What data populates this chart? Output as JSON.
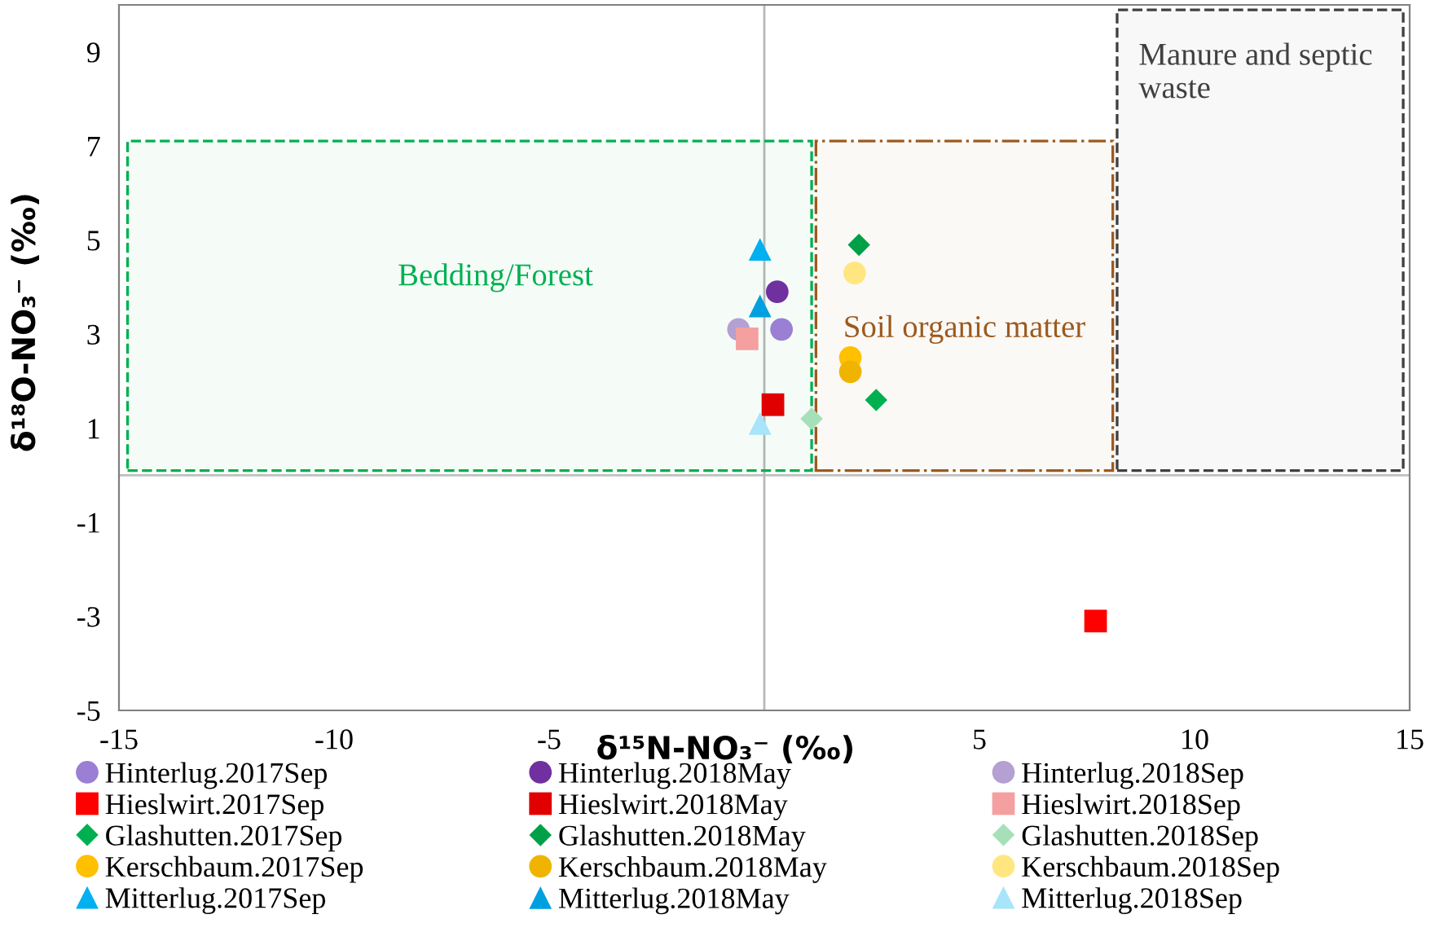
{
  "chart_data": {
    "type": "scatter",
    "xlabel": "δ¹⁵N-NO₃⁻ (‰)",
    "ylabel": "δ¹⁸O-NO₃⁻ (‰)",
    "xlim": [
      -15,
      15
    ],
    "xticks": [
      -15,
      -10,
      -5,
      5,
      10,
      15
    ],
    "ylim": [
      -5,
      10
    ],
    "yticks": [
      -5,
      -3,
      -1,
      1,
      3,
      5,
      7,
      9
    ],
    "grid": false,
    "legend": "bottom",
    "ref_lines": [
      {
        "axis": "y",
        "value": 0,
        "color": "#bfbfbf"
      },
      {
        "axis": "x",
        "value": 0,
        "color": "#b8b8b8"
      }
    ],
    "bands": [
      {
        "axis": "x",
        "from": -14.8,
        "to": 1.1,
        "label": "Bedding/Forest",
        "color": "#00b050"
      },
      {
        "axis": "x",
        "from": 1.2,
        "to": 8.1,
        "label": "Soil organic matter",
        "color": "#9c5a1e"
      },
      {
        "axis": "x",
        "from": 8.2,
        "to": 14.85,
        "label": "Manure and septic waste",
        "color": "#404040"
      }
    ],
    "series": [
      {
        "name": "Hinterlug.2017Sep",
        "marker": "circle",
        "color": "#9b7fd4",
        "x": [
          0.4
        ],
        "values": [
          3.1
        ]
      },
      {
        "name": "Hinterlug.2018May",
        "marker": "circle",
        "color": "#7030a0",
        "x": [
          0.3
        ],
        "values": [
          3.9
        ]
      },
      {
        "name": "Hinterlug.2018Sep",
        "marker": "circle",
        "color": "#b4a0d2",
        "x": [
          -0.6
        ],
        "values": [
          3.1
        ]
      },
      {
        "name": "Hieslwirt.2017Sep",
        "marker": "square",
        "color": "#ff0000",
        "x": [
          7.7
        ],
        "values": [
          -3.1
        ]
      },
      {
        "name": "Hieslwirt.2018May",
        "marker": "square",
        "color": "#e00000",
        "x": [
          0.2
        ],
        "values": [
          1.5
        ]
      },
      {
        "name": "Hieslwirt.2018Sep",
        "marker": "square",
        "color": "#f4a0a0",
        "x": [
          -0.4
        ],
        "values": [
          2.9
        ]
      },
      {
        "name": "Glashutten.2017Sep",
        "marker": "diamond",
        "color": "#00b050",
        "x": [
          2.6
        ],
        "values": [
          1.6
        ]
      },
      {
        "name": "Glashutten.2018May",
        "marker": "diamond",
        "color": "#00a048",
        "x": [
          2.2
        ],
        "values": [
          4.9
        ]
      },
      {
        "name": "Glashutten.2018Sep",
        "marker": "diamond",
        "color": "#a6e0b8",
        "x": [
          1.1
        ],
        "values": [
          1.2
        ]
      },
      {
        "name": "Kerschbaum.2017Sep",
        "marker": "circle",
        "color": "#ffc000",
        "x": [
          2.0
        ],
        "values": [
          2.5
        ]
      },
      {
        "name": "Kerschbaum.2018May",
        "marker": "circle",
        "color": "#f0b400",
        "x": [
          2.0
        ],
        "values": [
          2.2
        ]
      },
      {
        "name": "Kerschbaum.2018Sep",
        "marker": "circle",
        "color": "#ffe680",
        "x": [
          2.1
        ],
        "values": [
          4.3
        ]
      },
      {
        "name": "Mitterlug.2017Sep",
        "marker": "triangle",
        "color": "#00b0f0",
        "x": [
          -0.1
        ],
        "values": [
          4.8
        ]
      },
      {
        "name": "Mitterlug.2018May",
        "marker": "triangle",
        "color": "#00a0e0",
        "x": [
          -0.1
        ],
        "values": [
          3.6
        ]
      },
      {
        "name": "Mitterlug.2018Sep",
        "marker": "triangle",
        "color": "#a8e4fa",
        "x": [
          -0.1
        ],
        "values": [
          1.1
        ]
      }
    ]
  }
}
